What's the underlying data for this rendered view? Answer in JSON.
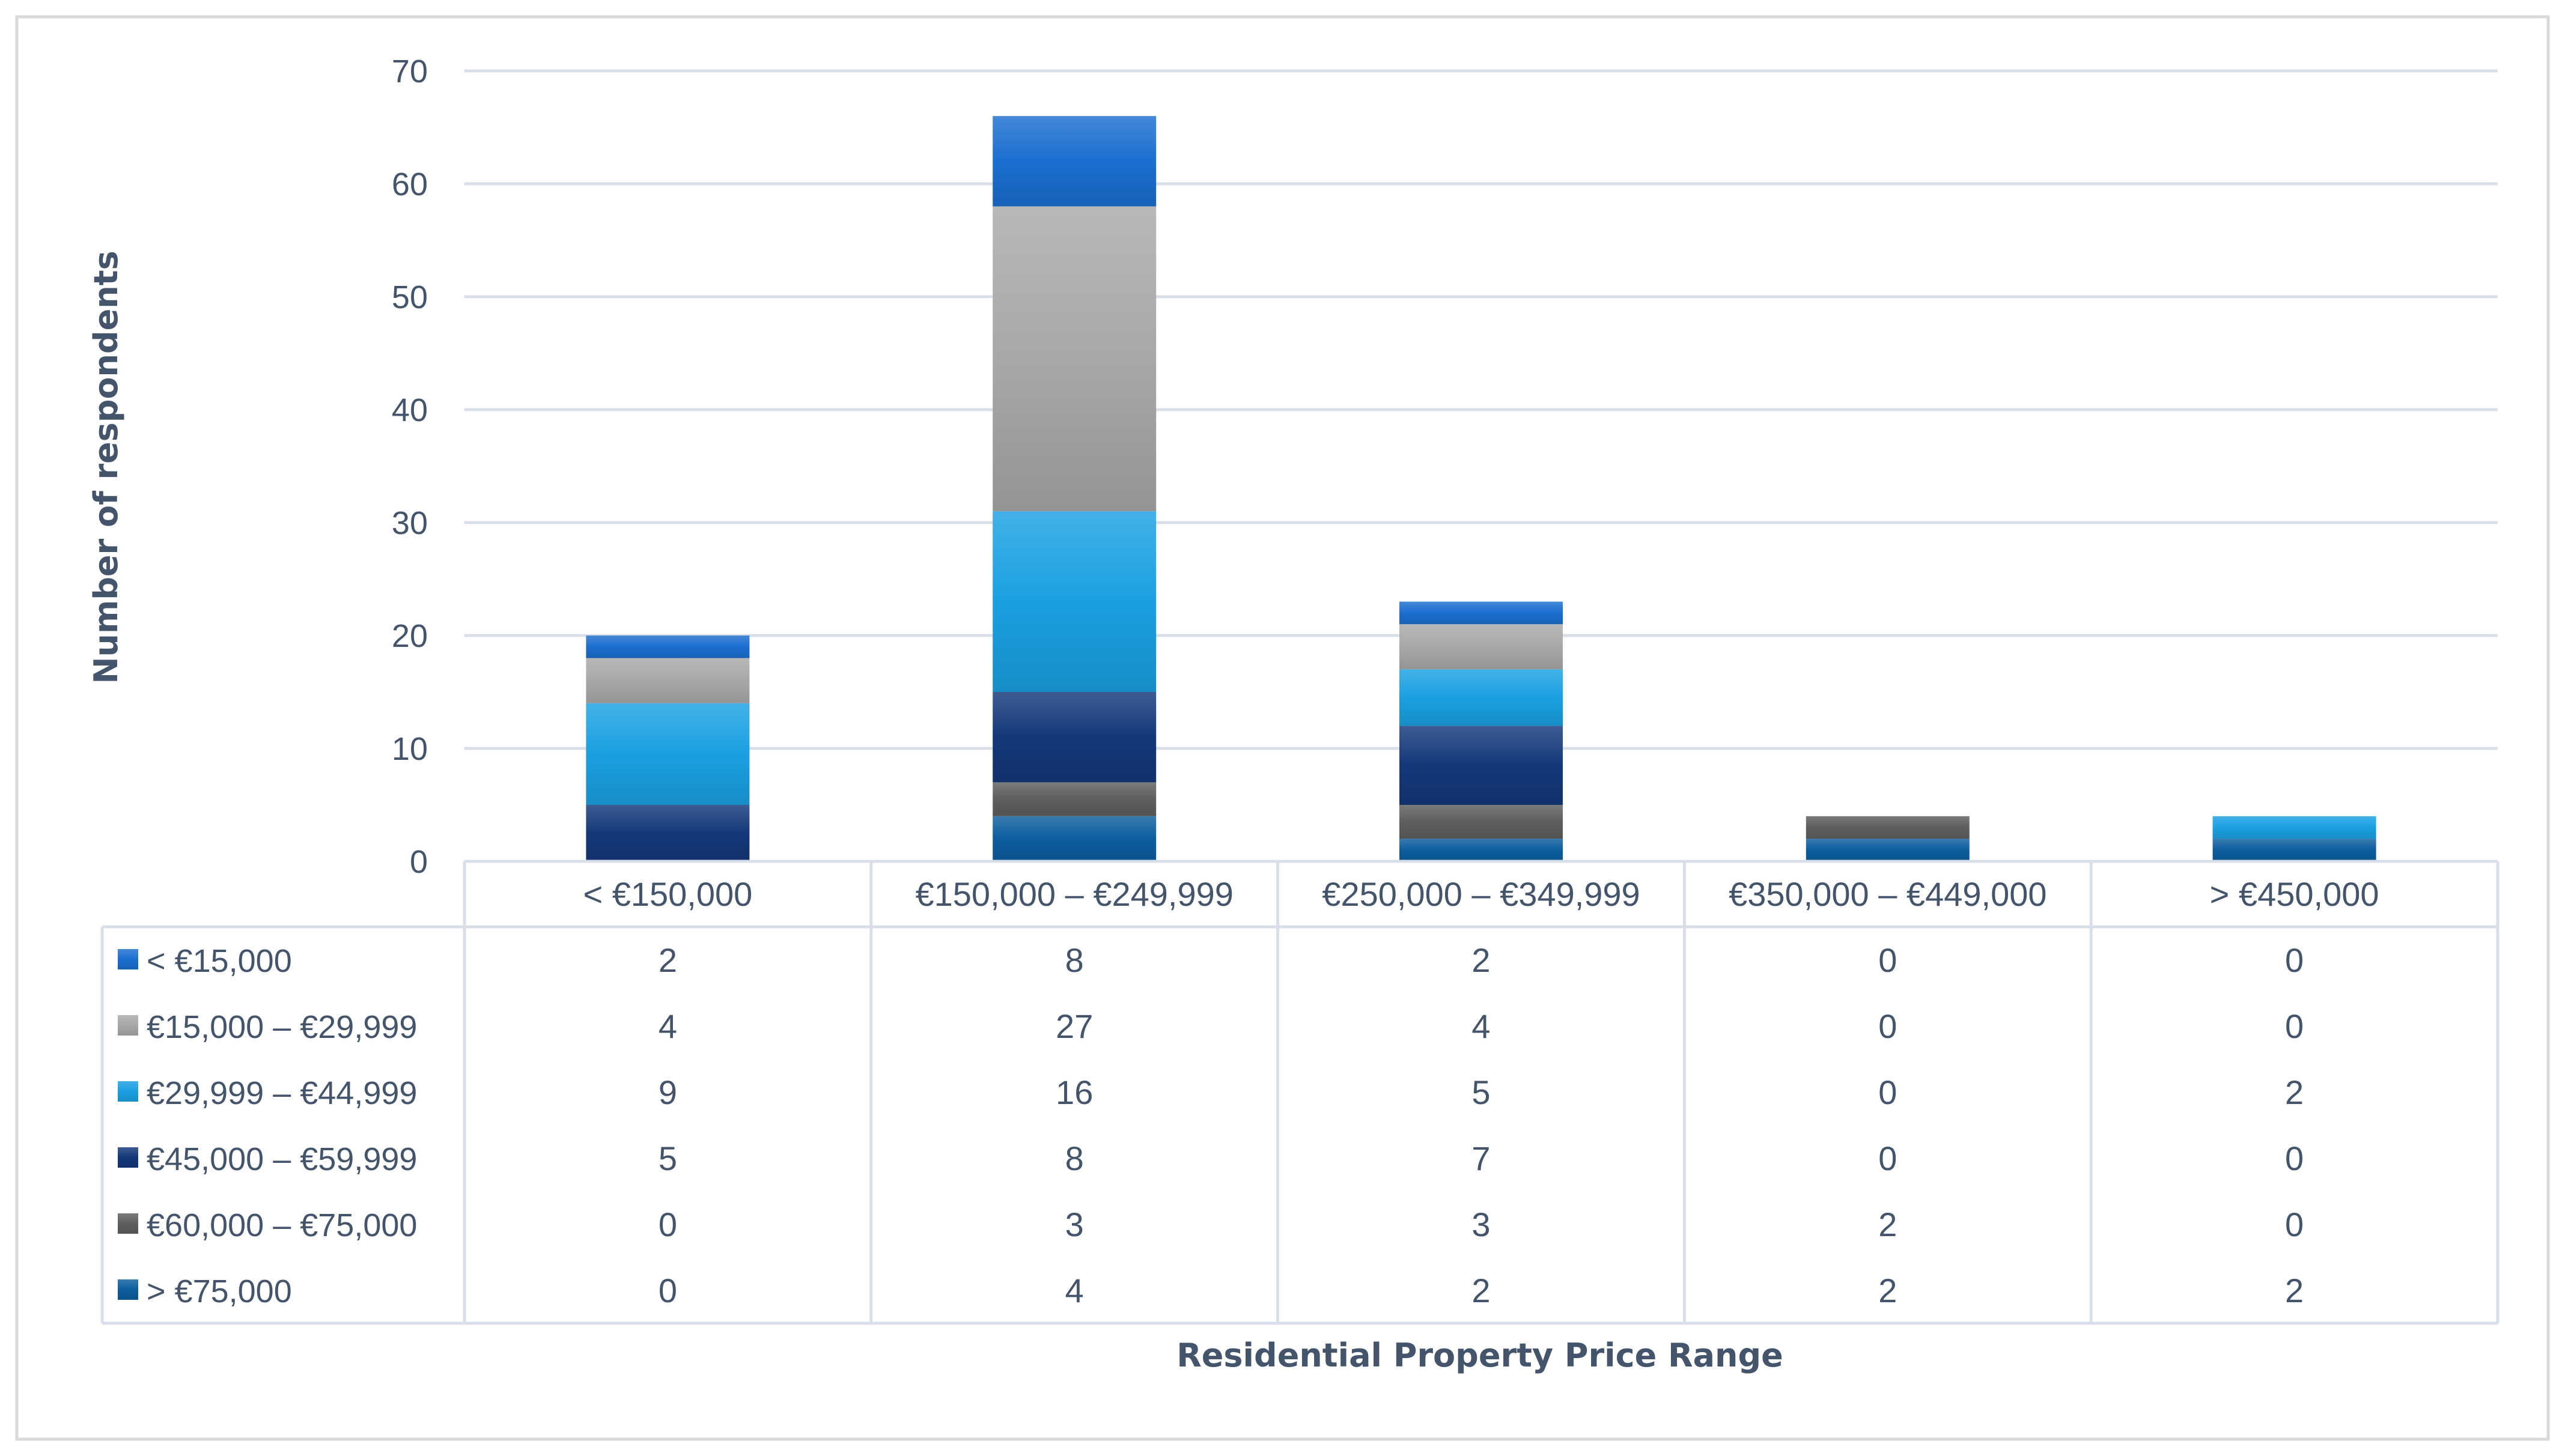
{
  "chart_data": {
    "type": "bar",
    "stacked": true,
    "categories": [
      "< €150,000",
      "€150,000 – €249,999",
      "€250,000 – €349,999",
      "€350,000 – €449,000",
      "> €450,000"
    ],
    "series": [
      {
        "name": "> €75,000",
        "color": "#0d5d9f",
        "values": [
          0,
          4,
          2,
          2,
          2
        ]
      },
      {
        "name": "€60,000 – €75,000",
        "color": "#5e5e5e",
        "values": [
          0,
          3,
          3,
          2,
          0
        ]
      },
      {
        "name": "€45,000 – €59,999",
        "color": "#13387a",
        "values": [
          5,
          8,
          7,
          0,
          0
        ]
      },
      {
        "name": "€29,999 – €44,999",
        "color": "#1aa0e2",
        "values": [
          9,
          16,
          5,
          0,
          2
        ]
      },
      {
        "name": "€15,000 – €29,999",
        "color": "#a8a8a8",
        "values": [
          4,
          27,
          4,
          0,
          0
        ]
      },
      {
        "name": "< €15,000",
        "color": "#1b6ed0",
        "values": [
          2,
          8,
          2,
          0,
          0
        ]
      }
    ],
    "table_row_order": [
      "< €15,000",
      "€15,000 – €29,999",
      "€29,999 – €44,999",
      "€45,000 – €59,999",
      "€60,000 – €75,000",
      "> €75,000"
    ],
    "xlabel": "Residential Property Price Range",
    "ylabel": "Number of respondents",
    "ylim": [
      0,
      70
    ],
    "yticks": [
      0,
      10,
      20,
      30,
      40,
      50,
      60,
      70
    ],
    "grid": true,
    "legend": "data-table",
    "colors": {
      "axis_text": "#44546a",
      "grid": "#d9dfe8",
      "table_border": "#d9dfe8",
      "frame": "#d9d9d9"
    }
  }
}
